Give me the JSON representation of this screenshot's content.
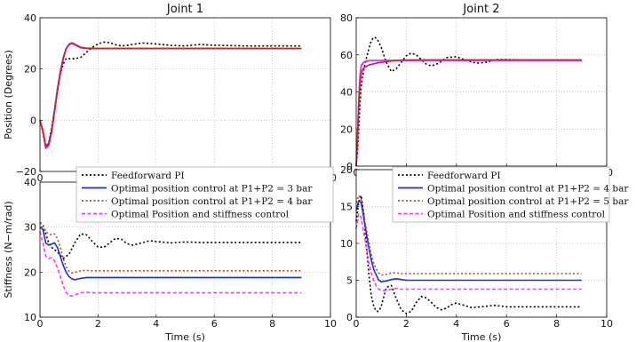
{
  "chart_data": [
    {
      "type": "line",
      "title": "Joint 1",
      "xlabel": "",
      "ylabel": "Position (Degrees)",
      "xlim": [
        0,
        10
      ],
      "ylim": [
        -20,
        40
      ],
      "xticks": [
        "0",
        "2",
        "4",
        "6",
        "8",
        "10"
      ],
      "yticks": [
        "−20",
        "0",
        "20",
        "40"
      ],
      "grid": true,
      "legend": "none",
      "series": [
        {
          "color": "#000000",
          "style": "dotted",
          "x": [
            0,
            0.1,
            0.2,
            0.3,
            0.4,
            0.5,
            0.6,
            0.7,
            0.8,
            0.9,
            1.0,
            1.2,
            1.4,
            1.6,
            1.8,
            2.0,
            2.2,
            2.4,
            2.6,
            2.8,
            3.0,
            3.5,
            4.0,
            4.5,
            5.0,
            5.5,
            6.0,
            7.0,
            8.0,
            9.0
          ],
          "y": [
            0,
            -5,
            -11,
            -9,
            -3,
            4,
            12,
            18,
            22,
            24,
            24,
            24,
            24.5,
            26.5,
            28.5,
            29.8,
            30.5,
            30.3,
            29.5,
            29.0,
            29.2,
            30.2,
            29.8,
            29.2,
            29.0,
            29.6,
            29.3,
            29.0,
            29.0,
            29.0
          ]
        },
        {
          "color": "#1a2fd6",
          "style": "solid",
          "x": [
            0,
            0.1,
            0.2,
            0.3,
            0.4,
            0.5,
            0.6,
            0.7,
            0.8,
            0.9,
            1.0,
            1.1,
            1.2,
            1.4,
            1.6,
            1.8,
            2.0,
            2.5,
            3.0,
            4.0,
            5.0,
            6.0,
            7.0,
            8.0,
            9.0
          ],
          "y": [
            0,
            -4,
            -10,
            -9,
            -4,
            4,
            12,
            19,
            24.5,
            28,
            29.5,
            30,
            29.5,
            28.3,
            28.1,
            28.0,
            28.0,
            28.0,
            28.0,
            28.0,
            28.0,
            28.0,
            28.0,
            28.0,
            28.0
          ]
        },
        {
          "color": "#ff33ff",
          "style": "solid",
          "x": [
            0,
            0.1,
            0.2,
            0.3,
            0.4,
            0.5,
            0.6,
            0.7,
            0.8,
            0.9,
            1.0,
            1.1,
            1.2,
            1.4,
            1.6,
            1.8,
            2.0,
            2.5,
            3.0,
            4.0,
            5.0,
            6.0,
            7.0,
            8.0,
            9.0
          ],
          "y": [
            0,
            -4.5,
            -11,
            -10,
            -5,
            3,
            11,
            18,
            24,
            28,
            29.8,
            30.3,
            29.8,
            28.5,
            28.2,
            28.1,
            28.0,
            28.0,
            28.0,
            28.0,
            28.0,
            28.0,
            28.0,
            28.0,
            28.0
          ]
        },
        {
          "color": "#d42020",
          "style": "solid",
          "x": [
            0,
            0.1,
            0.2,
            0.3,
            0.4,
            0.5,
            0.6,
            0.7,
            0.8,
            0.9,
            1.0,
            1.1,
            1.2,
            1.4,
            1.6,
            1.8,
            2.0,
            3.0,
            5.0,
            7.0,
            9.0
          ],
          "y": [
            0,
            -4,
            -10.5,
            -9.5,
            -4.5,
            3.5,
            11.5,
            18.5,
            24,
            27.8,
            29.5,
            30,
            29.5,
            28.4,
            28.1,
            28.0,
            28.0,
            28.0,
            28.0,
            28.0,
            28.0
          ]
        }
      ]
    },
    {
      "type": "line",
      "title": "Joint 2",
      "xlabel": "",
      "ylabel": "",
      "xlim": [
        0,
        10
      ],
      "ylim": [
        0,
        80
      ],
      "xticks": [
        "0",
        "2",
        "4",
        "6",
        "8",
        "10"
      ],
      "yticks": [
        "0",
        "20",
        "40",
        "60",
        "80"
      ],
      "grid": true,
      "legend": "none",
      "series": [
        {
          "color": "#000000",
          "style": "dotted",
          "x": [
            0,
            0.05,
            0.1,
            0.15,
            0.2,
            0.3,
            0.4,
            0.5,
            0.6,
            0.7,
            0.8,
            0.9,
            1.0,
            1.2,
            1.4,
            1.6,
            1.8,
            2.0,
            2.2,
            2.4,
            2.6,
            2.8,
            3.0,
            3.3,
            3.6,
            4.0,
            4.4,
            4.8,
            5.2,
            5.6,
            6.0,
            7.0,
            8.0,
            9.0
          ],
          "y": [
            0,
            8,
            20,
            33,
            43,
            52,
            58,
            63,
            67.5,
            69.5,
            69,
            67,
            64,
            56,
            51,
            52.5,
            56,
            59.5,
            61,
            60,
            57.5,
            55,
            54,
            55.5,
            58.5,
            59,
            57,
            55.5,
            56,
            57.5,
            57.5,
            57,
            57,
            57
          ]
        },
        {
          "color": "#1a2fd6",
          "style": "solid",
          "x": [
            0,
            0.05,
            0.1,
            0.15,
            0.2,
            0.3,
            0.4,
            0.6,
            0.8,
            1.0,
            1.5,
            2.0,
            3.0,
            5.0,
            9.0
          ],
          "y": [
            0,
            15,
            35,
            48,
            54,
            56,
            56.5,
            57,
            57,
            57,
            57,
            57,
            57,
            57,
            57
          ]
        },
        {
          "color": "#ff33ff",
          "style": "solid",
          "x": [
            0,
            0.05,
            0.1,
            0.15,
            0.2,
            0.3,
            0.4,
            0.6,
            0.8,
            1.0,
            1.5,
            2.0,
            3.0,
            5.0,
            9.0
          ],
          "y": [
            0,
            16,
            36,
            49,
            54.5,
            56.2,
            56.8,
            57,
            57,
            57,
            57,
            57,
            57,
            57,
            57
          ]
        },
        {
          "color": "#d42020",
          "style": "solid",
          "x": [
            0,
            0.05,
            0.1,
            0.15,
            0.2,
            0.3,
            0.5,
            0.8,
            1.0,
            1.3,
            1.6,
            2.0,
            2.5,
            3.0,
            4.0,
            5.0,
            6.0,
            7.0,
            8.0,
            9.0
          ],
          "y": [
            0,
            14,
            32,
            44,
            50,
            53,
            54.5,
            55.5,
            56,
            56.5,
            57,
            57.2,
            57.3,
            57.3,
            57.3,
            57.3,
            57.3,
            57.3,
            57.3,
            57.3
          ]
        }
      ]
    },
    {
      "type": "line",
      "title": "",
      "xlabel": "Time (s)",
      "ylabel": "Stiffness (N−m/rad)",
      "xlim": [
        0,
        10
      ],
      "ylim": [
        10,
        40
      ],
      "xticks": [
        "0",
        "2",
        "4",
        "6",
        "8",
        "10"
      ],
      "yticks": [
        "10",
        "20",
        "30",
        "40"
      ],
      "grid": true,
      "legend": "top",
      "series": [
        {
          "name": "Feedforward PI",
          "color": "#000000",
          "style": "dotted",
          "x": [
            0,
            0.1,
            0.2,
            0.3,
            0.4,
            0.6,
            0.8,
            1.0,
            1.2,
            1.4,
            1.6,
            1.8,
            2.0,
            2.2,
            2.4,
            2.6,
            2.8,
            3.0,
            3.2,
            3.5,
            3.8,
            4.0,
            4.5,
            5.0,
            5.5,
            6.0,
            7.0,
            8.0,
            9.0
          ],
          "y": [
            31,
            30.5,
            28.5,
            26.5,
            25.5,
            24.5,
            23,
            24,
            26.5,
            28.5,
            28.3,
            26.8,
            25.6,
            25.5,
            26.5,
            27.5,
            27.3,
            26.3,
            26.0,
            26.5,
            27.0,
            26.8,
            26.5,
            26.7,
            26.6,
            26.6,
            26.6,
            26.6,
            26.6
          ]
        },
        {
          "name": "Optimal position control at P1+P2 = 3 bar",
          "color": "#1a2fd6",
          "style": "solid",
          "x": [
            0,
            0.1,
            0.2,
            0.3,
            0.4,
            0.5,
            0.6,
            0.7,
            0.8,
            0.9,
            1.0,
            1.1,
            1.2,
            1.4,
            1.6,
            1.8,
            2.0,
            2.5,
            3.0,
            4.0,
            5.0,
            6.0,
            7.0,
            8.0,
            9.0
          ],
          "y": [
            30,
            29.5,
            26.5,
            26.0,
            26.2,
            26.5,
            25.5,
            23.5,
            21.5,
            20.0,
            19.0,
            18.5,
            18.3,
            18.6,
            18.8,
            18.8,
            18.8,
            18.8,
            18.8,
            18.8,
            18.8,
            18.8,
            18.8,
            18.8,
            18.8
          ]
        },
        {
          "name": "Optimal position control at P1+P2 = 4 bar",
          "color": "#a0522d",
          "style": "dotted",
          "x": [
            0,
            0.1,
            0.2,
            0.3,
            0.4,
            0.5,
            0.6,
            0.7,
            0.8,
            0.9,
            1.0,
            1.1,
            1.2,
            1.4,
            1.6,
            1.8,
            2.0,
            2.5,
            3.0,
            4.0,
            5.0,
            6.0,
            7.0,
            8.0,
            9.0
          ],
          "y": [
            31,
            30.5,
            29.0,
            28.5,
            28.3,
            28.5,
            27.5,
            25.5,
            23.0,
            21.2,
            20.2,
            19.8,
            19.9,
            20.3,
            20.4,
            20.3,
            20.3,
            20.3,
            20.3,
            20.3,
            20.3,
            20.3,
            20.3,
            20.3,
            20.3
          ]
        },
        {
          "name": "Optimal Position and stiffness control",
          "color": "#ff33ff",
          "style": "dashed",
          "x": [
            0,
            0.1,
            0.2,
            0.3,
            0.4,
            0.5,
            0.6,
            0.7,
            0.8,
            0.9,
            1.0,
            1.1,
            1.2,
            1.4,
            1.6,
            1.8,
            2.0,
            2.5,
            3.0,
            4.0,
            5.0,
            6.0,
            7.0,
            8.0,
            9.0
          ],
          "y": [
            29,
            26.5,
            23.5,
            23.0,
            23.2,
            22.5,
            21.0,
            19.0,
            17.0,
            15.5,
            14.8,
            14.7,
            14.9,
            15.4,
            15.5,
            15.4,
            15.4,
            15.4,
            15.4,
            15.4,
            15.4,
            15.4,
            15.4,
            15.4,
            15.4
          ]
        }
      ]
    },
    {
      "type": "line",
      "title": "",
      "xlabel": "Time (s)",
      "ylabel": "",
      "xlim": [
        0,
        10
      ],
      "ylim": [
        0,
        20
      ],
      "xticks": [
        "0",
        "2",
        "4",
        "6",
        "8",
        "10"
      ],
      "yticks": [
        "0",
        "5",
        "10",
        "15",
        "20"
      ],
      "grid": true,
      "legend": "top",
      "series": [
        {
          "name": "Feedforward PI",
          "color": "#000000",
          "style": "dotted",
          "x": [
            0,
            0.1,
            0.2,
            0.3,
            0.4,
            0.5,
            0.6,
            0.7,
            0.8,
            0.9,
            1.0,
            1.2,
            1.4,
            1.6,
            1.8,
            2.0,
            2.2,
            2.4,
            2.6,
            2.8,
            3.0,
            3.2,
            3.4,
            3.6,
            3.8,
            4.0,
            4.3,
            4.6,
            5.0,
            5.5,
            6.0,
            7.0,
            8.0,
            9.0
          ],
          "y": [
            13,
            15.5,
            16.5,
            14.0,
            10.0,
            6.0,
            3.0,
            1.5,
            0.8,
            0.8,
            1.5,
            4.0,
            4.3,
            2.5,
            1.0,
            0.5,
            0.8,
            2.0,
            2.8,
            2.6,
            2.0,
            1.3,
            1.0,
            1.2,
            1.7,
            1.9,
            1.6,
            1.3,
            1.4,
            1.6,
            1.4,
            1.4,
            1.4,
            1.4
          ]
        },
        {
          "name": "Optimal position control at P1+P2 = 4 bar",
          "color": "#1a2fd6",
          "style": "solid",
          "x": [
            0,
            0.1,
            0.2,
            0.3,
            0.4,
            0.5,
            0.6,
            0.7,
            0.8,
            0.9,
            1.0,
            1.2,
            1.4,
            1.6,
            1.8,
            2.0,
            2.5,
            3.0,
            4.0,
            5.0,
            6.0,
            7.0,
            8.0,
            9.0
          ],
          "y": [
            14.5,
            15.8,
            15.5,
            13.5,
            11.5,
            9.5,
            7.8,
            6.5,
            5.7,
            5.0,
            4.8,
            4.9,
            5.1,
            5.2,
            5.1,
            5.0,
            5.0,
            5.0,
            5.0,
            5.0,
            5.0,
            5.0,
            5.0,
            5.0
          ]
        },
        {
          "name": "Optimal position control at P1+P2 = 5 bar",
          "color": "#a0522d",
          "style": "dotted",
          "x": [
            0,
            0.1,
            0.2,
            0.3,
            0.4,
            0.5,
            0.6,
            0.7,
            0.8,
            0.9,
            1.0,
            1.2,
            1.4,
            1.6,
            1.8,
            2.0,
            2.5,
            3.0,
            4.0,
            5.0,
            6.0,
            7.0,
            8.0,
            9.0
          ],
          "y": [
            15.5,
            16.5,
            16.0,
            14.0,
            12.0,
            10.2,
            8.5,
            7.3,
            6.5,
            6.0,
            5.7,
            5.8,
            6.0,
            6.0,
            5.9,
            5.9,
            5.9,
            5.9,
            5.9,
            5.9,
            5.9,
            5.9,
            5.9,
            5.9
          ]
        },
        {
          "name": "Optimal Position and stiffness control",
          "color": "#ff33ff",
          "style": "dashed",
          "x": [
            0,
            0.1,
            0.2,
            0.3,
            0.4,
            0.5,
            0.6,
            0.7,
            0.8,
            0.9,
            1.0,
            1.2,
            1.4,
            1.6,
            1.8,
            2.0,
            2.5,
            3.0,
            4.0,
            5.0,
            6.0,
            7.0,
            8.0,
            9.0
          ],
          "y": [
            12.0,
            14.0,
            13.5,
            11.5,
            9.5,
            7.5,
            6.0,
            5.0,
            4.2,
            3.8,
            3.6,
            3.6,
            3.8,
            3.9,
            3.8,
            3.8,
            3.8,
            3.8,
            3.8,
            3.8,
            3.8,
            3.8,
            3.8,
            3.8
          ]
        }
      ]
    }
  ]
}
